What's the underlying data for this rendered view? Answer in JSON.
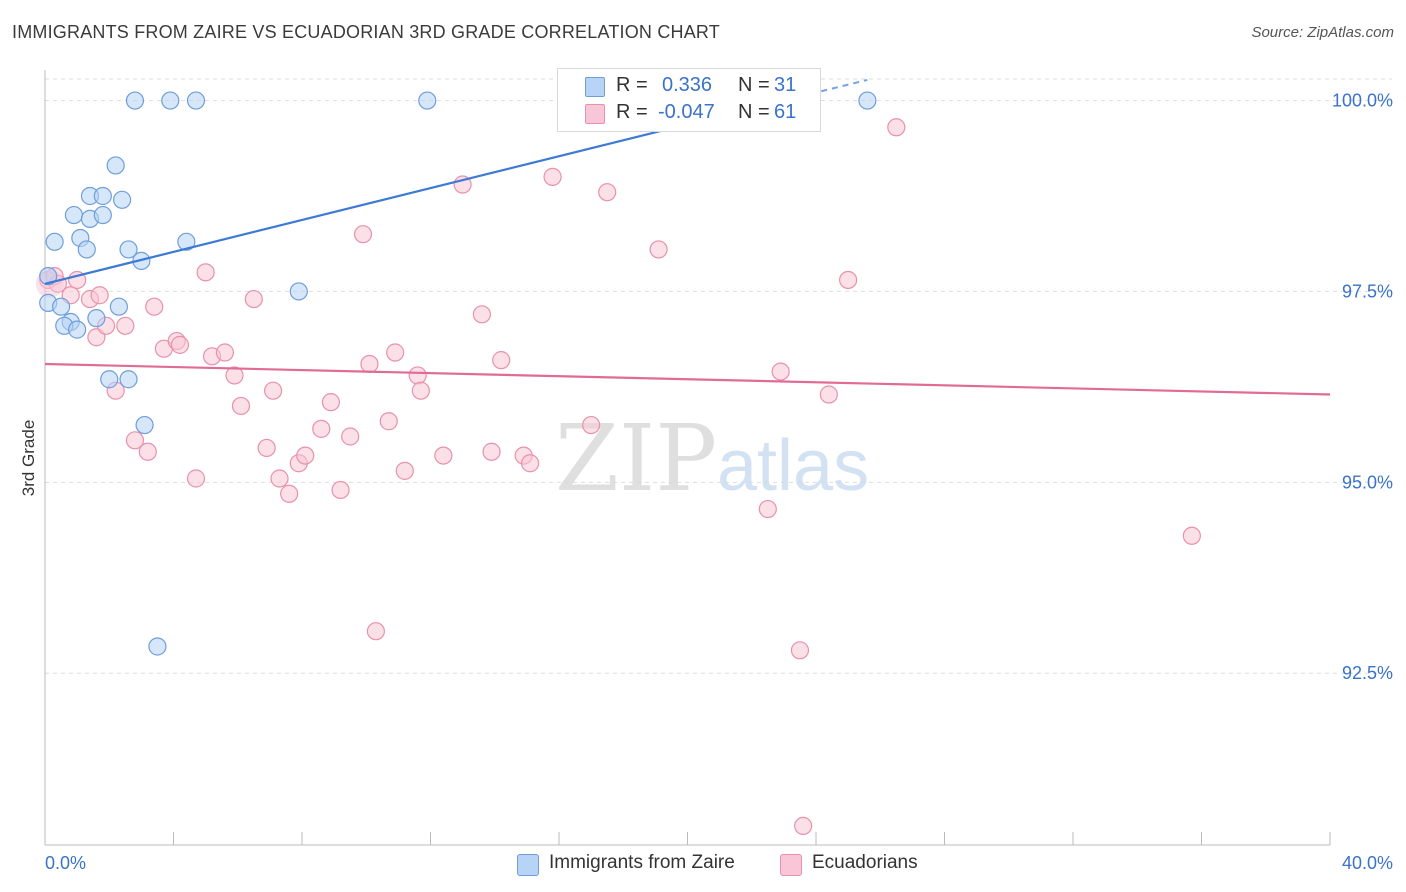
{
  "header": {
    "title": "IMMIGRANTS FROM ZAIRE VS ECUADORIAN 3RD GRADE CORRELATION CHART",
    "source": "Source: ZipAtlas.com"
  },
  "legend": {
    "series1": {
      "r_label": "R =",
      "r_value": "0.336",
      "n_label": "N =",
      "n_value": "31"
    },
    "series2": {
      "r_label": "R =",
      "r_value": "-0.047",
      "n_label": "N =",
      "n_value": "61"
    }
  },
  "bottom_legend": {
    "series1": "Immigrants from Zaire",
    "series2": "Ecuadorians"
  },
  "watermark": {
    "zip": "ZIP",
    "atlas": "atlas"
  },
  "colors": {
    "blue_fill": "#b7d3f5",
    "blue_stroke": "#6f9ed9",
    "blue_line": "#3c7ad6",
    "pink_fill": "#f8c6d6",
    "pink_stroke": "#e891ad",
    "pink_line": "#e06b94",
    "tick_text": "#3a73c9",
    "grid": "#dedede"
  },
  "chart_data": {
    "type": "scatter",
    "title": "IMMIGRANTS FROM ZAIRE VS ECUADORIAN 3RD GRADE CORRELATION CHART",
    "xlabel": "",
    "ylabel": "3rd Grade",
    "xlim": [
      0,
      40
    ],
    "ylim": [
      90.25,
      100.4
    ],
    "x_tick_labels": [
      "0.0%",
      "40.0%"
    ],
    "y_ticks": [
      92.5,
      95.0,
      97.5,
      100.0
    ],
    "y_tick_labels": [
      "92.5%",
      "95.0%",
      "97.5%",
      "100.0%"
    ],
    "grid": true,
    "legend_position": "top-center",
    "series": [
      {
        "name": "Immigrants from Zaire",
        "color": "blue",
        "r": 0.336,
        "n": 31,
        "trend": {
          "x": [
            0,
            22.5
          ],
          "y": [
            97.6,
            99.95
          ]
        },
        "trend_dashed": {
          "x": [
            22.5,
            25.6
          ],
          "y": [
            99.95,
            100.27
          ]
        },
        "points": [
          [
            2.8,
            100.0
          ],
          [
            3.9,
            100.0
          ],
          [
            4.7,
            100.0
          ],
          [
            11.9,
            100.0
          ],
          [
            25.6,
            100.0
          ],
          [
            2.2,
            99.15
          ],
          [
            1.4,
            98.75
          ],
          [
            1.8,
            98.75
          ],
          [
            2.4,
            98.7
          ],
          [
            0.9,
            98.5
          ],
          [
            1.4,
            98.45
          ],
          [
            1.8,
            98.5
          ],
          [
            0.3,
            98.15
          ],
          [
            1.1,
            98.2
          ],
          [
            4.4,
            98.15
          ],
          [
            1.3,
            98.05
          ],
          [
            2.6,
            98.05
          ],
          [
            3.0,
            97.9
          ],
          [
            0.1,
            97.7
          ],
          [
            7.9,
            97.5
          ],
          [
            0.1,
            97.35
          ],
          [
            0.5,
            97.3
          ],
          [
            2.3,
            97.3
          ],
          [
            0.8,
            97.1
          ],
          [
            0.6,
            97.05
          ],
          [
            1.6,
            97.15
          ],
          [
            1.0,
            97.0
          ],
          [
            2.0,
            96.35
          ],
          [
            2.6,
            96.35
          ],
          [
            3.1,
            95.75
          ],
          [
            3.5,
            92.85
          ]
        ]
      },
      {
        "name": "Ecuadorians",
        "color": "pink",
        "r": -0.047,
        "n": 61,
        "trend": {
          "x": [
            0,
            40
          ],
          "y": [
            96.55,
            96.15
          ]
        },
        "points": [
          [
            0.1,
            97.65
          ],
          [
            0.3,
            97.7
          ],
          [
            0.4,
            97.6
          ],
          [
            0.8,
            97.45
          ],
          [
            1.0,
            97.65
          ],
          [
            1.4,
            97.4
          ],
          [
            1.6,
            96.9
          ],
          [
            1.7,
            97.45
          ],
          [
            1.9,
            97.05
          ],
          [
            2.2,
            96.2
          ],
          [
            2.5,
            97.05
          ],
          [
            2.8,
            95.55
          ],
          [
            3.2,
            95.4
          ],
          [
            3.4,
            97.3
          ],
          [
            3.7,
            96.75
          ],
          [
            4.1,
            96.85
          ],
          [
            4.2,
            96.8
          ],
          [
            4.7,
            95.05
          ],
          [
            5.0,
            97.75
          ],
          [
            5.2,
            96.65
          ],
          [
            5.6,
            96.7
          ],
          [
            5.9,
            96.4
          ],
          [
            6.1,
            96.0
          ],
          [
            6.5,
            97.4
          ],
          [
            6.9,
            95.45
          ],
          [
            7.1,
            96.2
          ],
          [
            7.3,
            95.05
          ],
          [
            7.6,
            94.85
          ],
          [
            7.9,
            95.25
          ],
          [
            8.1,
            95.35
          ],
          [
            8.6,
            95.7
          ],
          [
            8.9,
            96.05
          ],
          [
            9.2,
            94.9
          ],
          [
            9.5,
            95.6
          ],
          [
            9.9,
            98.25
          ],
          [
            10.1,
            96.55
          ],
          [
            10.3,
            93.05
          ],
          [
            10.7,
            95.8
          ],
          [
            10.9,
            96.7
          ],
          [
            11.2,
            95.15
          ],
          [
            11.6,
            96.4
          ],
          [
            11.7,
            96.2
          ],
          [
            12.4,
            95.35
          ],
          [
            13.0,
            98.9
          ],
          [
            13.6,
            97.2
          ],
          [
            13.9,
            95.4
          ],
          [
            14.2,
            96.6
          ],
          [
            14.9,
            95.35
          ],
          [
            15.1,
            95.25
          ],
          [
            15.8,
            99.0
          ],
          [
            17.0,
            95.75
          ],
          [
            17.5,
            98.8
          ],
          [
            19.1,
            98.05
          ],
          [
            22.5,
            94.65
          ],
          [
            22.9,
            96.45
          ],
          [
            23.5,
            92.8
          ],
          [
            23.6,
            90.5
          ],
          [
            24.4,
            96.15
          ],
          [
            25.0,
            97.65
          ],
          [
            26.5,
            99.65
          ],
          [
            35.7,
            94.3
          ]
        ]
      }
    ]
  }
}
